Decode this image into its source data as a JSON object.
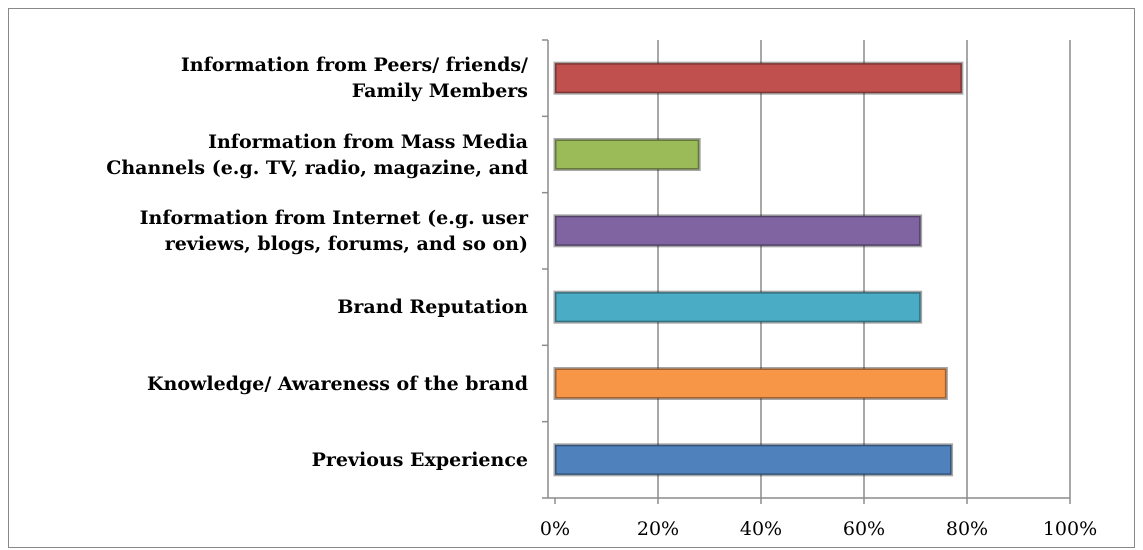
{
  "chart_data": {
    "type": "barh",
    "categories": [
      "Information from Peers/ friends/\nFamily Members",
      "Information from Mass Media\nChannels (e.g. TV, radio, magazine, and",
      "Information from Internet (e.g. user\nreviews, blogs, forums, and so on)",
      "Brand Reputation",
      "Knowledge/ Awareness of the brand",
      "Previous Experience"
    ],
    "values": [
      79,
      28,
      71,
      71,
      76,
      77
    ],
    "colors": [
      "#c0504d",
      "#9bbb59",
      "#8064a2",
      "#4bacc6",
      "#f79646",
      "#4f81bd"
    ],
    "xlim": [
      0,
      100
    ],
    "xticks": [
      {
        "value": 0,
        "label": "0%"
      },
      {
        "value": 20,
        "label": "20%"
      },
      {
        "value": 40,
        "label": "40%"
      },
      {
        "value": 60,
        "label": "60%"
      },
      {
        "value": 80,
        "label": "80%"
      },
      {
        "value": 100,
        "label": "100%"
      }
    ],
    "grid": true
  }
}
